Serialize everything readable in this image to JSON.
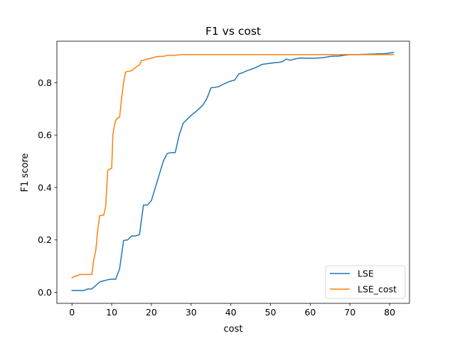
{
  "chart_data": {
    "type": "line",
    "title": "F1 vs cost",
    "xlabel": "cost",
    "ylabel": "F1 score",
    "xlim": [
      -3.8,
      85.0
    ],
    "ylim": [
      -0.042,
      0.958
    ],
    "xticks": [
      0,
      10,
      20,
      30,
      40,
      50,
      60,
      70,
      80
    ],
    "yticks": [
      0.0,
      0.2,
      0.4,
      0.6,
      0.8
    ],
    "grid": false,
    "legend_position": "lower-right",
    "series": [
      {
        "name": "LSE",
        "color": "#1f77b4",
        "points": [
          [
            0,
            0.007
          ],
          [
            1,
            0.007
          ],
          [
            2,
            0.007
          ],
          [
            3,
            0.007
          ],
          [
            4,
            0.013
          ],
          [
            5,
            0.013
          ],
          [
            6,
            0.026
          ],
          [
            7,
            0.04
          ],
          [
            8,
            0.044
          ],
          [
            9,
            0.048
          ],
          [
            10,
            0.05
          ],
          [
            11,
            0.05
          ],
          [
            12,
            0.09
          ],
          [
            13,
            0.198
          ],
          [
            14,
            0.2
          ],
          [
            15,
            0.215
          ],
          [
            16,
            0.215
          ],
          [
            17,
            0.22
          ],
          [
            18,
            0.333
          ],
          [
            19,
            0.333
          ],
          [
            20,
            0.35
          ],
          [
            21,
            0.4
          ],
          [
            22,
            0.45
          ],
          [
            23,
            0.5
          ],
          [
            24,
            0.53
          ],
          [
            25,
            0.533
          ],
          [
            26,
            0.533
          ],
          [
            27,
            0.6
          ],
          [
            28,
            0.645
          ],
          [
            29,
            0.66
          ],
          [
            30,
            0.675
          ],
          [
            31,
            0.687
          ],
          [
            32,
            0.7
          ],
          [
            33,
            0.715
          ],
          [
            34,
            0.74
          ],
          [
            35,
            0.78
          ],
          [
            36,
            0.782
          ],
          [
            37,
            0.785
          ],
          [
            38,
            0.793
          ],
          [
            39,
            0.8
          ],
          [
            40,
            0.806
          ],
          [
            41,
            0.81
          ],
          [
            42,
            0.833
          ],
          [
            43,
            0.838
          ],
          [
            44,
            0.845
          ],
          [
            45,
            0.85
          ],
          [
            46,
            0.856
          ],
          [
            47,
            0.863
          ],
          [
            48,
            0.87
          ],
          [
            49,
            0.872
          ],
          [
            50,
            0.874
          ],
          [
            51,
            0.876
          ],
          [
            52,
            0.877
          ],
          [
            53,
            0.88
          ],
          [
            54,
            0.89
          ],
          [
            55,
            0.885
          ],
          [
            56,
            0.89
          ],
          [
            57,
            0.893
          ],
          [
            58,
            0.894
          ],
          [
            59,
            0.893
          ],
          [
            60,
            0.893
          ],
          [
            61,
            0.893
          ],
          [
            62,
            0.894
          ],
          [
            63,
            0.895
          ],
          [
            64,
            0.897
          ],
          [
            65,
            0.9
          ],
          [
            66,
            0.901
          ],
          [
            67,
            0.901
          ],
          [
            68,
            0.903
          ],
          [
            69,
            0.905
          ],
          [
            70,
            0.907
          ],
          [
            71,
            0.907
          ],
          [
            72,
            0.907
          ],
          [
            73,
            0.908
          ],
          [
            74,
            0.908
          ],
          [
            75,
            0.909
          ],
          [
            76,
            0.909
          ],
          [
            77,
            0.91
          ],
          [
            78,
            0.91
          ],
          [
            79,
            0.911
          ],
          [
            80,
            0.913
          ],
          [
            81,
            0.915
          ]
        ]
      },
      {
        "name": "LSE_cost",
        "color": "#ff7f0e",
        "points": [
          [
            0,
            0.055
          ],
          [
            0.5,
            0.06
          ],
          [
            1,
            0.062
          ],
          [
            2,
            0.068
          ],
          [
            3,
            0.068
          ],
          [
            4,
            0.068
          ],
          [
            5,
            0.068
          ],
          [
            5.5,
            0.125
          ],
          [
            6,
            0.16
          ],
          [
            6.5,
            0.24
          ],
          [
            7,
            0.293
          ],
          [
            7.5,
            0.293
          ],
          [
            8,
            0.295
          ],
          [
            8.5,
            0.33
          ],
          [
            9,
            0.465
          ],
          [
            9.5,
            0.47
          ],
          [
            10,
            0.473
          ],
          [
            10.3,
            0.6
          ],
          [
            10.6,
            0.63
          ],
          [
            11,
            0.655
          ],
          [
            11.5,
            0.665
          ],
          [
            12,
            0.668
          ],
          [
            12.5,
            0.74
          ],
          [
            13,
            0.8
          ],
          [
            13.5,
            0.84
          ],
          [
            14,
            0.843
          ],
          [
            15,
            0.845
          ],
          [
            16,
            0.858
          ],
          [
            17,
            0.868
          ],
          [
            17.5,
            0.885
          ],
          [
            18,
            0.885
          ],
          [
            19,
            0.89
          ],
          [
            20,
            0.893
          ],
          [
            21,
            0.898
          ],
          [
            22,
            0.9
          ],
          [
            23,
            0.9
          ],
          [
            24,
            0.904
          ],
          [
            25,
            0.904
          ],
          [
            26,
            0.904
          ],
          [
            27,
            0.906
          ],
          [
            28,
            0.907
          ],
          [
            30,
            0.907
          ],
          [
            35,
            0.907
          ],
          [
            40,
            0.907
          ],
          [
            50,
            0.907
          ],
          [
            60,
            0.907
          ],
          [
            70,
            0.907
          ],
          [
            80,
            0.907
          ],
          [
            81,
            0.907
          ]
        ]
      }
    ]
  }
}
